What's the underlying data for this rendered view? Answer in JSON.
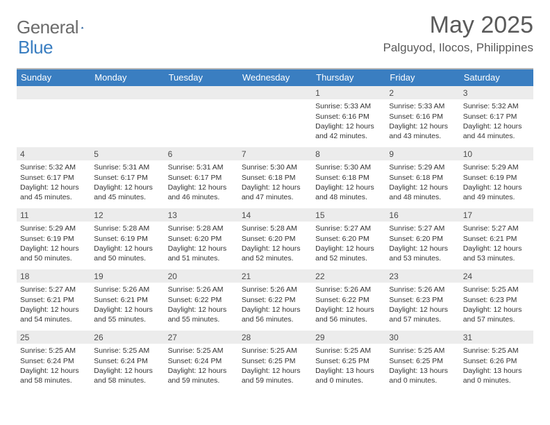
{
  "brand": {
    "word1": "General",
    "word2": "Blue",
    "color_gray": "#6b6b6b",
    "color_blue": "#3a7ec1"
  },
  "title": {
    "month": "May 2025",
    "location": "Palguyod, Ilocos, Philippines",
    "text_color": "#5a5a5a"
  },
  "theme": {
    "header_bg": "#3a7ec1",
    "header_text": "#ffffff",
    "band_bg": "#ececec",
    "rule_color": "#b8b8b8",
    "body_text": "#333333"
  },
  "weekdays": [
    "Sunday",
    "Monday",
    "Tuesday",
    "Wednesday",
    "Thursday",
    "Friday",
    "Saturday"
  ],
  "weeks": [
    [
      {
        "n": "",
        "l1": "",
        "l2": "",
        "l3": ""
      },
      {
        "n": "",
        "l1": "",
        "l2": "",
        "l3": ""
      },
      {
        "n": "",
        "l1": "",
        "l2": "",
        "l3": ""
      },
      {
        "n": "",
        "l1": "",
        "l2": "",
        "l3": ""
      },
      {
        "n": "1",
        "l1": "Sunrise: 5:33 AM",
        "l2": "Sunset: 6:16 PM",
        "l3": "Daylight: 12 hours and 42 minutes."
      },
      {
        "n": "2",
        "l1": "Sunrise: 5:33 AM",
        "l2": "Sunset: 6:16 PM",
        "l3": "Daylight: 12 hours and 43 minutes."
      },
      {
        "n": "3",
        "l1": "Sunrise: 5:32 AM",
        "l2": "Sunset: 6:17 PM",
        "l3": "Daylight: 12 hours and 44 minutes."
      }
    ],
    [
      {
        "n": "4",
        "l1": "Sunrise: 5:32 AM",
        "l2": "Sunset: 6:17 PM",
        "l3": "Daylight: 12 hours and 45 minutes."
      },
      {
        "n": "5",
        "l1": "Sunrise: 5:31 AM",
        "l2": "Sunset: 6:17 PM",
        "l3": "Daylight: 12 hours and 45 minutes."
      },
      {
        "n": "6",
        "l1": "Sunrise: 5:31 AM",
        "l2": "Sunset: 6:17 PM",
        "l3": "Daylight: 12 hours and 46 minutes."
      },
      {
        "n": "7",
        "l1": "Sunrise: 5:30 AM",
        "l2": "Sunset: 6:18 PM",
        "l3": "Daylight: 12 hours and 47 minutes."
      },
      {
        "n": "8",
        "l1": "Sunrise: 5:30 AM",
        "l2": "Sunset: 6:18 PM",
        "l3": "Daylight: 12 hours and 48 minutes."
      },
      {
        "n": "9",
        "l1": "Sunrise: 5:29 AM",
        "l2": "Sunset: 6:18 PM",
        "l3": "Daylight: 12 hours and 48 minutes."
      },
      {
        "n": "10",
        "l1": "Sunrise: 5:29 AM",
        "l2": "Sunset: 6:19 PM",
        "l3": "Daylight: 12 hours and 49 minutes."
      }
    ],
    [
      {
        "n": "11",
        "l1": "Sunrise: 5:29 AM",
        "l2": "Sunset: 6:19 PM",
        "l3": "Daylight: 12 hours and 50 minutes."
      },
      {
        "n": "12",
        "l1": "Sunrise: 5:28 AM",
        "l2": "Sunset: 6:19 PM",
        "l3": "Daylight: 12 hours and 50 minutes."
      },
      {
        "n": "13",
        "l1": "Sunrise: 5:28 AM",
        "l2": "Sunset: 6:20 PM",
        "l3": "Daylight: 12 hours and 51 minutes."
      },
      {
        "n": "14",
        "l1": "Sunrise: 5:28 AM",
        "l2": "Sunset: 6:20 PM",
        "l3": "Daylight: 12 hours and 52 minutes."
      },
      {
        "n": "15",
        "l1": "Sunrise: 5:27 AM",
        "l2": "Sunset: 6:20 PM",
        "l3": "Daylight: 12 hours and 52 minutes."
      },
      {
        "n": "16",
        "l1": "Sunrise: 5:27 AM",
        "l2": "Sunset: 6:20 PM",
        "l3": "Daylight: 12 hours and 53 minutes."
      },
      {
        "n": "17",
        "l1": "Sunrise: 5:27 AM",
        "l2": "Sunset: 6:21 PM",
        "l3": "Daylight: 12 hours and 53 minutes."
      }
    ],
    [
      {
        "n": "18",
        "l1": "Sunrise: 5:27 AM",
        "l2": "Sunset: 6:21 PM",
        "l3": "Daylight: 12 hours and 54 minutes."
      },
      {
        "n": "19",
        "l1": "Sunrise: 5:26 AM",
        "l2": "Sunset: 6:21 PM",
        "l3": "Daylight: 12 hours and 55 minutes."
      },
      {
        "n": "20",
        "l1": "Sunrise: 5:26 AM",
        "l2": "Sunset: 6:22 PM",
        "l3": "Daylight: 12 hours and 55 minutes."
      },
      {
        "n": "21",
        "l1": "Sunrise: 5:26 AM",
        "l2": "Sunset: 6:22 PM",
        "l3": "Daylight: 12 hours and 56 minutes."
      },
      {
        "n": "22",
        "l1": "Sunrise: 5:26 AM",
        "l2": "Sunset: 6:22 PM",
        "l3": "Daylight: 12 hours and 56 minutes."
      },
      {
        "n": "23",
        "l1": "Sunrise: 5:26 AM",
        "l2": "Sunset: 6:23 PM",
        "l3": "Daylight: 12 hours and 57 minutes."
      },
      {
        "n": "24",
        "l1": "Sunrise: 5:25 AM",
        "l2": "Sunset: 6:23 PM",
        "l3": "Daylight: 12 hours and 57 minutes."
      }
    ],
    [
      {
        "n": "25",
        "l1": "Sunrise: 5:25 AM",
        "l2": "Sunset: 6:24 PM",
        "l3": "Daylight: 12 hours and 58 minutes."
      },
      {
        "n": "26",
        "l1": "Sunrise: 5:25 AM",
        "l2": "Sunset: 6:24 PM",
        "l3": "Daylight: 12 hours and 58 minutes."
      },
      {
        "n": "27",
        "l1": "Sunrise: 5:25 AM",
        "l2": "Sunset: 6:24 PM",
        "l3": "Daylight: 12 hours and 59 minutes."
      },
      {
        "n": "28",
        "l1": "Sunrise: 5:25 AM",
        "l2": "Sunset: 6:25 PM",
        "l3": "Daylight: 12 hours and 59 minutes."
      },
      {
        "n": "29",
        "l1": "Sunrise: 5:25 AM",
        "l2": "Sunset: 6:25 PM",
        "l3": "Daylight: 13 hours and 0 minutes."
      },
      {
        "n": "30",
        "l1": "Sunrise: 5:25 AM",
        "l2": "Sunset: 6:25 PM",
        "l3": "Daylight: 13 hours and 0 minutes."
      },
      {
        "n": "31",
        "l1": "Sunrise: 5:25 AM",
        "l2": "Sunset: 6:26 PM",
        "l3": "Daylight: 13 hours and 0 minutes."
      }
    ]
  ]
}
